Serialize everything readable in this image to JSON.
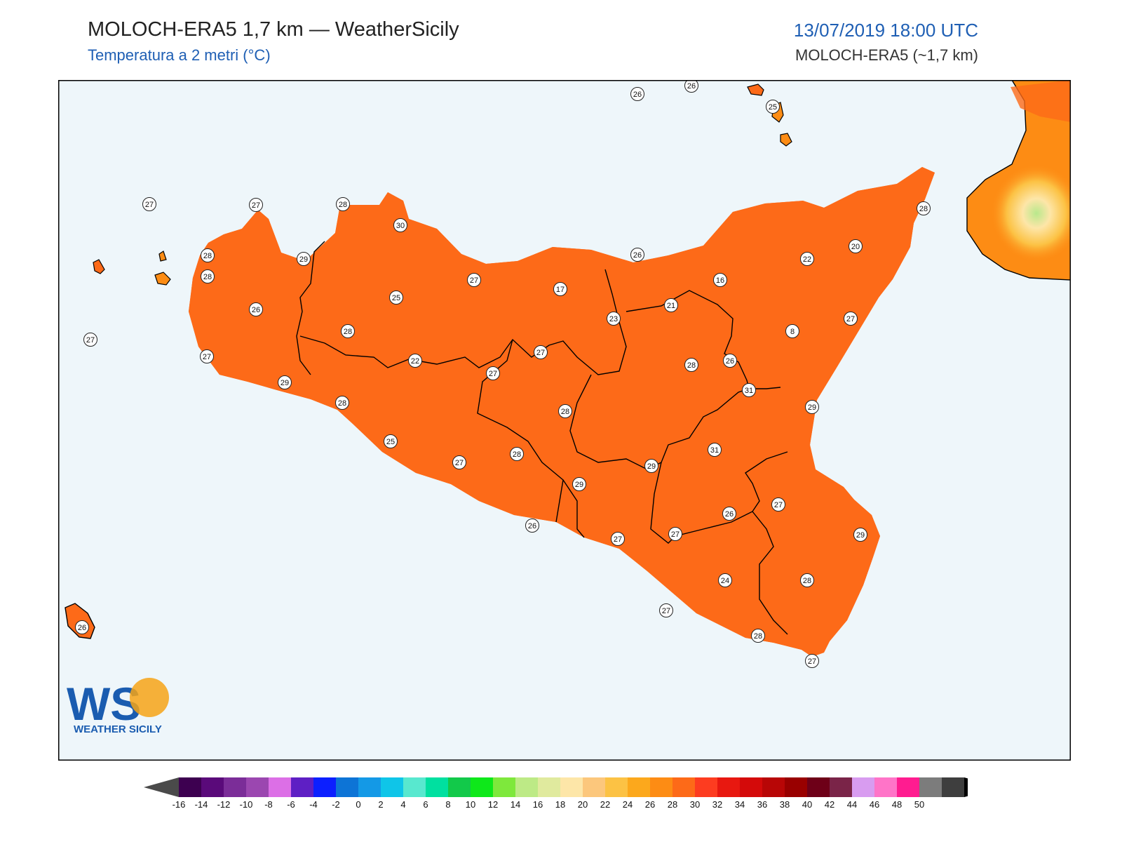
{
  "header": {
    "title": "MOLOCH-ERA5 1,7 km — WeatherSicily",
    "subtitle": "Temperatura a 2 metri (°C)",
    "datetime": "13/07/2019 18:00 UTC",
    "model": "MOLOCH-ERA5 (~1,7 km)"
  },
  "logo": {
    "letters": "WS",
    "name": "WEATHER SICILY"
  },
  "colors": {
    "sea": "#eef6fa",
    "border": "#000000",
    "scale": [
      "#3d0050",
      "#5a0a7a",
      "#7b2d98",
      "#9b47b0",
      "#dc6fe6",
      "#5e1fc4",
      "#0c1fff",
      "#0d74d6",
      "#1499e6",
      "#0fc5e8",
      "#58e8cf",
      "#00e0a0",
      "#12c94a",
      "#0ee81a",
      "#7ee83c",
      "#bdea86",
      "#e0ea9e",
      "#fde6a8",
      "#fcc77c",
      "#fcc244",
      "#fca81c",
      "#fd8c14",
      "#fd6a18",
      "#fd3c20",
      "#e81810",
      "#d40a0a",
      "#b80606",
      "#990000",
      "#6e0018",
      "#7a2448",
      "#d89cf0",
      "#ff74c8",
      "#ff1c90",
      "#7c7c7c",
      "#3e3e3e"
    ]
  },
  "chart_data": {
    "type": "map",
    "variable": "Temperatura a 2 metri (°C)",
    "colorbar": {
      "ticks": [
        -16,
        -14,
        -12,
        -10,
        -8,
        -6,
        -4,
        -2,
        0,
        2,
        4,
        6,
        8,
        10,
        12,
        14,
        16,
        18,
        20,
        22,
        24,
        26,
        28,
        30,
        32,
        34,
        36,
        38,
        40,
        42,
        44,
        46,
        48,
        50
      ]
    },
    "stations": [
      {
        "value": "26"
      },
      {
        "value": "26"
      },
      {
        "value": "25"
      },
      {
        "value": "27"
      },
      {
        "value": "28"
      },
      {
        "value": "27"
      },
      {
        "value": "28"
      },
      {
        "value": "30"
      },
      {
        "value": "28"
      },
      {
        "value": "29"
      },
      {
        "value": "27"
      },
      {
        "value": "28"
      },
      {
        "value": "26"
      },
      {
        "value": "25"
      },
      {
        "value": "26"
      },
      {
        "value": "22"
      },
      {
        "value": "20"
      },
      {
        "value": "17"
      },
      {
        "value": "16"
      },
      {
        "value": "21"
      },
      {
        "value": "23"
      },
      {
        "value": "27"
      },
      {
        "value": "8"
      },
      {
        "value": "28"
      },
      {
        "value": "27"
      },
      {
        "value": "29"
      },
      {
        "value": "22"
      },
      {
        "value": "27"
      },
      {
        "value": "27"
      },
      {
        "value": "28"
      },
      {
        "value": "26"
      },
      {
        "value": "31"
      },
      {
        "value": "29"
      },
      {
        "value": "28"
      },
      {
        "value": "25"
      },
      {
        "value": "27"
      },
      {
        "value": "28"
      },
      {
        "value": "31"
      },
      {
        "value": "29"
      },
      {
        "value": "27"
      },
      {
        "value": "29"
      },
      {
        "value": "26"
      },
      {
        "value": "27"
      },
      {
        "value": "27"
      },
      {
        "value": "26"
      },
      {
        "value": "29"
      },
      {
        "value": "24"
      },
      {
        "value": "28"
      },
      {
        "value": "27"
      },
      {
        "value": "28"
      },
      {
        "value": "27"
      },
      {
        "value": "26"
      },
      {
        "value": "27"
      },
      {
        "value": "28"
      }
    ]
  }
}
